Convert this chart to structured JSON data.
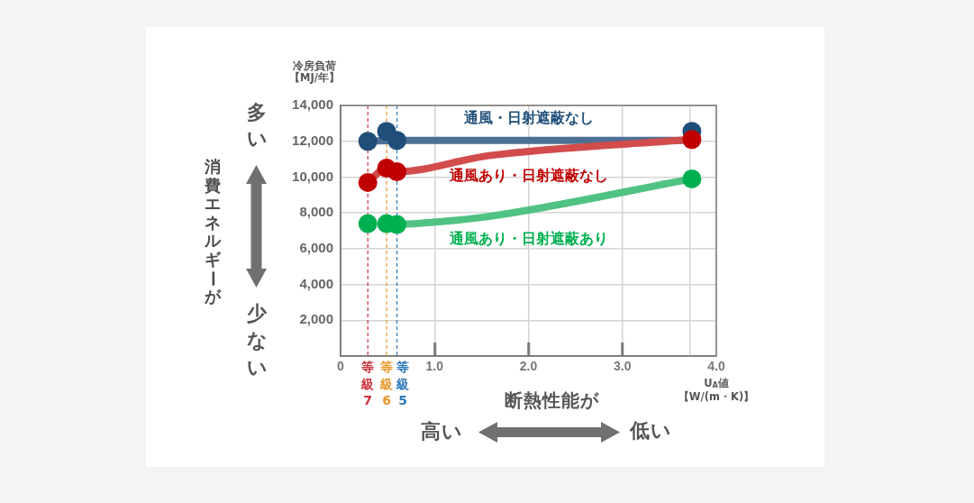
{
  "chart_data": {
    "type": "line",
    "xlabel": "U$_{A}$値【W/(m・K)】",
    "ylabel": "冷房負荷【MJ/年】",
    "annotations": [
      "消費エネルギーが",
      "多い",
      "少ない",
      "断熱性能が",
      "高い",
      "低い"
    ],
    "xlim": [
      0,
      4
    ],
    "ylim": [
      0,
      14000
    ],
    "xticks": [
      0,
      {
        "value": 1,
        "label": "1.0"
      },
      {
        "value": 2,
        "label": "2.0"
      },
      {
        "value": 3,
        "label": "3.0"
      },
      {
        "value": 4,
        "label": "4.0"
      }
    ],
    "yticks": [
      {
        "value": 2000,
        "label": "2,000"
      },
      {
        "value": 4000,
        "label": "4,000"
      },
      {
        "value": 6000,
        "label": "6,000"
      },
      {
        "value": 8000,
        "label": "8,000"
      },
      {
        "value": 10000,
        "label": "10,000"
      },
      {
        "value": 12000,
        "label": "12,000"
      },
      {
        "value": 14000,
        "label": "14,000"
      }
    ],
    "grid": true,
    "legend": false,
    "ref_lines": [
      {
        "axis": "x",
        "value": 0.29,
        "label": "等級7",
        "color": "#c8323c",
        "line_style": "dashed"
      },
      {
        "axis": "x",
        "value": 0.49,
        "label": "等級6",
        "color": "#e8982a",
        "line_style": "dashed"
      },
      {
        "axis": "x",
        "value": 0.6,
        "label": "等級5",
        "color": "#2e78b8",
        "line_style": "dashed"
      },
      {
        "axis": "x",
        "value": 3.72,
        "color": "#d9d9d9"
      }
    ],
    "series": [
      {
        "color": "#4d7096",
        "x": [
          0.29,
          0.6,
          3.62
        ],
        "values": [
          12000,
          12050,
          12050
        ]
      },
      {
        "color": "#d24c4c",
        "x": [
          0.29,
          0.49,
          0.6,
          1.58,
          3.74
        ],
        "values": [
          9700,
          10500,
          10300,
          11200,
          12100
        ]
      },
      {
        "color": "#50c283",
        "x": [
          0.6,
          0.8,
          1.58,
          3.74
        ],
        "values": [
          7350,
          7400,
          7800,
          9900
        ]
      },
      {
        "name": "通風・日射遮蔽なし",
        "type": "scatter",
        "color": "#1f4e79",
        "marker": "circle",
        "x": [
          0.29,
          0.49,
          0.6,
          3.74
        ],
        "values": [
          12000,
          12550,
          12050,
          12550
        ]
      },
      {
        "name": "通風あり・日射遮蔽なし",
        "type": "scatter",
        "color": "#c00000",
        "marker": "circle",
        "x": [
          0.29,
          0.49,
          0.6,
          3.74
        ],
        "values": [
          9700,
          10500,
          10300,
          12100
        ]
      },
      {
        "name": "通風あり・日射遮蔽あり",
        "type": "scatter",
        "color": "#00b050",
        "marker": "circle",
        "x": [
          0.29,
          0.49,
          0.6,
          3.74
        ],
        "values": [
          7400,
          7400,
          7350,
          9900
        ]
      }
    ]
  }
}
